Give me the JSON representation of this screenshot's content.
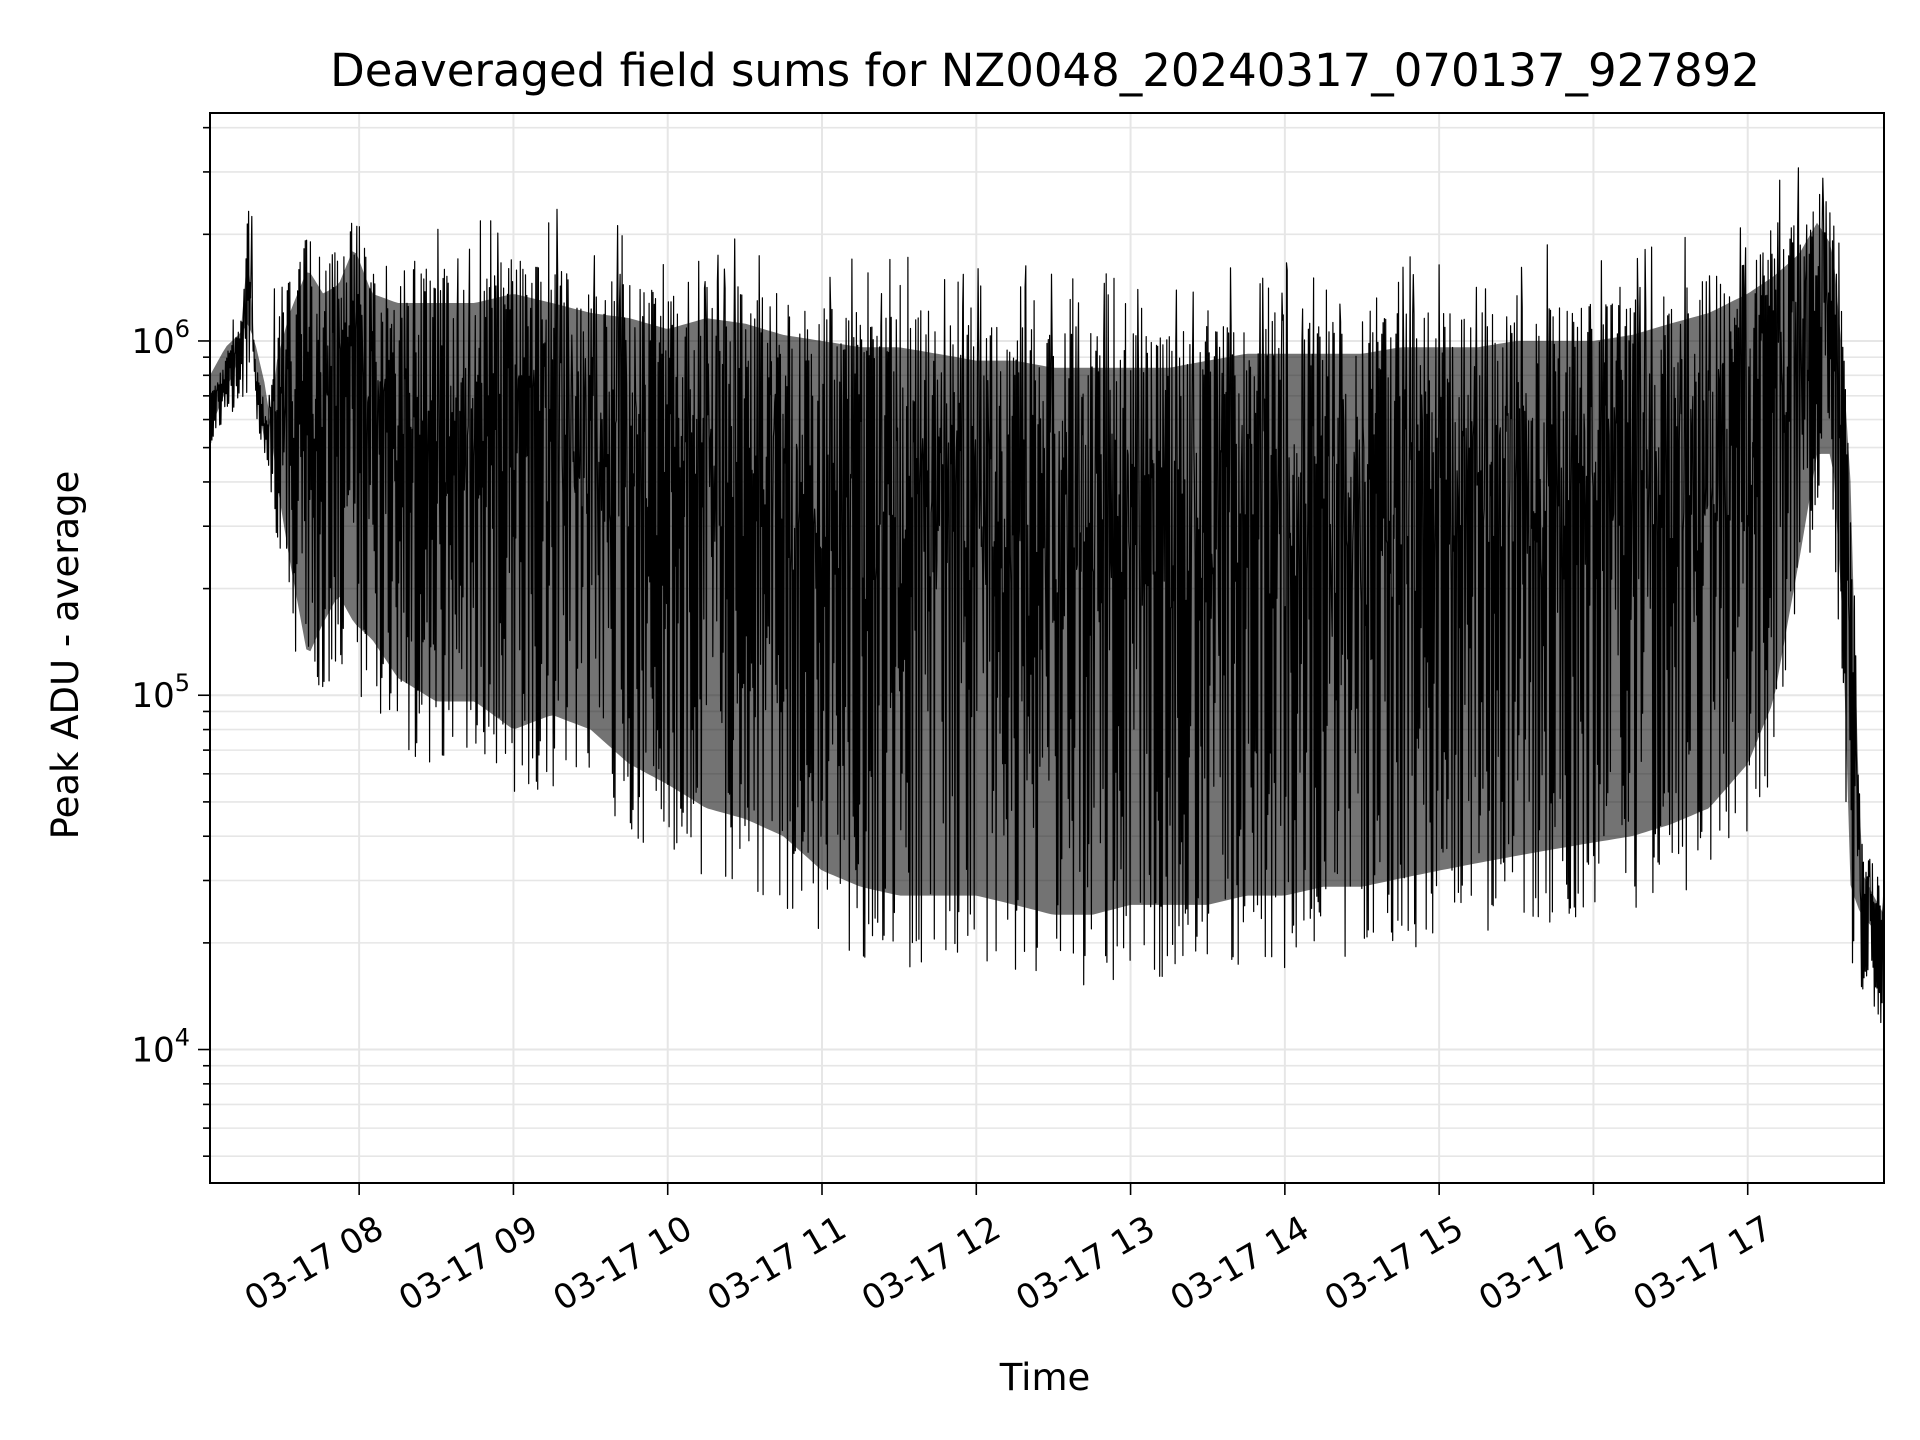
{
  "chart_data": {
    "type": "line",
    "title": "Deaveraged field sums for NZ0048_20240317_070137_927892",
    "xlabel": "Time",
    "ylabel": "Peak ADU - average",
    "yscale": "log",
    "ylim": [
      4200,
      4400000
    ],
    "xlim": [
      "2024-03-17 07:02",
      "2024-03-17 17:53"
    ],
    "grid": true,
    "line_color": "#000000",
    "grid_color": "#e6e6e6",
    "y_ticks": [
      {
        "base": "10",
        "exp": "4",
        "value": 10000
      },
      {
        "base": "10",
        "exp": "5",
        "value": 100000
      },
      {
        "base": "10",
        "exp": "6",
        "value": 1000000
      }
    ],
    "x_ticks": [
      {
        "label": "03-17 08",
        "time": "2024-03-17 08:00"
      },
      {
        "label": "03-17 09",
        "time": "2024-03-17 09:00"
      },
      {
        "label": "03-17 10",
        "time": "2024-03-17 10:00"
      },
      {
        "label": "03-17 11",
        "time": "2024-03-17 11:00"
      },
      {
        "label": "03-17 12",
        "time": "2024-03-17 12:00"
      },
      {
        "label": "03-17 13",
        "time": "2024-03-17 13:00"
      },
      {
        "label": "03-17 14",
        "time": "2024-03-17 14:00"
      },
      {
        "label": "03-17 15",
        "time": "2024-03-17 15:00"
      },
      {
        "label": "03-17 16",
        "time": "2024-03-17 16:00"
      },
      {
        "label": "03-17 17",
        "time": "2024-03-17 17:00"
      }
    ],
    "series": [
      {
        "name": "",
        "x": [
          "2024-03-17 07:02",
          "2024-03-17 07:08",
          "2024-03-17 07:13",
          "2024-03-17 07:17",
          "2024-03-17 07:20",
          "2024-03-17 07:24",
          "2024-03-17 07:28",
          "2024-03-17 07:33",
          "2024-03-17 07:40",
          "2024-03-17 07:46",
          "2024-03-17 07:52",
          "2024-03-17 07:58",
          "2024-03-17 08:05",
          "2024-03-17 08:15",
          "2024-03-17 08:30",
          "2024-03-17 08:45",
          "2024-03-17 09:00",
          "2024-03-17 09:15",
          "2024-03-17 09:30",
          "2024-03-17 09:45",
          "2024-03-17 10:00",
          "2024-03-17 10:15",
          "2024-03-17 10:30",
          "2024-03-17 10:45",
          "2024-03-17 11:00",
          "2024-03-17 11:15",
          "2024-03-17 11:30",
          "2024-03-17 11:45",
          "2024-03-17 12:00",
          "2024-03-17 12:15",
          "2024-03-17 12:30",
          "2024-03-17 12:45",
          "2024-03-17 13:00",
          "2024-03-17 13:15",
          "2024-03-17 13:30",
          "2024-03-17 13:45",
          "2024-03-17 14:00",
          "2024-03-17 14:15",
          "2024-03-17 14:30",
          "2024-03-17 14:45",
          "2024-03-17 15:00",
          "2024-03-17 15:15",
          "2024-03-17 15:30",
          "2024-03-17 15:45",
          "2024-03-17 16:00",
          "2024-03-17 16:15",
          "2024-03-17 16:30",
          "2024-03-17 16:45",
          "2024-03-17 17:00",
          "2024-03-17 17:10",
          "2024-03-17 17:20",
          "2024-03-17 17:27",
          "2024-03-17 17:33",
          "2024-03-17 17:37",
          "2024-03-17 17:40",
          "2024-03-17 17:44",
          "2024-03-17 17:48",
          "2024-03-17 17:53"
        ],
        "upper": [
          700000,
          900000,
          1100000,
          2400000,
          900000,
          600000,
          1100000,
          1500000,
          2000000,
          1700000,
          1800000,
          2300000,
          1700000,
          1600000,
          1600000,
          1600000,
          1700000,
          1600000,
          1500000,
          1450000,
          1350000,
          1450000,
          1400000,
          1300000,
          1250000,
          1200000,
          1200000,
          1150000,
          1100000,
          1100000,
          1050000,
          1050000,
          1050000,
          1050000,
          1100000,
          1150000,
          1150000,
          1150000,
          1150000,
          1200000,
          1200000,
          1200000,
          1250000,
          1250000,
          1250000,
          1300000,
          1400000,
          1500000,
          1700000,
          1900000,
          2200000,
          2700000,
          2300000,
          1100000,
          500000,
          40000,
          35000,
          30000
        ],
        "lower": [
          500000,
          600000,
          650000,
          700000,
          600000,
          450000,
          250000,
          150000,
          80000,
          100000,
          120000,
          100000,
          90000,
          70000,
          60000,
          60000,
          50000,
          55000,
          50000,
          40000,
          35000,
          30000,
          28000,
          25000,
          20000,
          18000,
          17000,
          17000,
          17000,
          16000,
          15000,
          15000,
          16000,
          16000,
          16000,
          17000,
          17000,
          18000,
          18000,
          19000,
          20000,
          21000,
          22000,
          23000,
          24000,
          25000,
          27000,
          30000,
          40000,
          60000,
          150000,
          300000,
          300000,
          100000,
          18000,
          15000,
          14000,
          11000
        ]
      }
    ]
  }
}
